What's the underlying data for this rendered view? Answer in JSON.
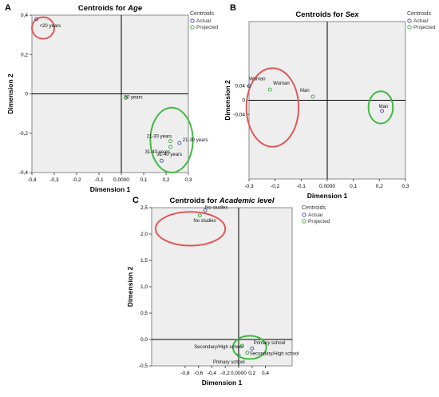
{
  "chart_data": [
    {
      "type": "scatter",
      "panel_letter": "A",
      "title_prefix": "Centroids for ",
      "title_var": "Age",
      "xlabel": "Dimension 1",
      "ylabel": "Dimension 2",
      "xlim": [
        -0.4,
        0.3
      ],
      "ylim": [
        -0.4,
        0.4
      ],
      "xticks": [
        -0.4,
        -0.3,
        -0.2,
        -0.1,
        0.0,
        0.1,
        0.2,
        0.3
      ],
      "xtick_labels": [
        "-0,4",
        "-0,3",
        "-0,2",
        "-0,1",
        "0,0000",
        "0,1",
        "0,2",
        "0,3"
      ],
      "yticks": [
        -0.4,
        -0.2,
        0.0,
        0.2,
        0.4
      ],
      "ytick_labels": [
        "-0,4",
        "-0,2",
        "0",
        "0,2",
        "0,4"
      ],
      "legend_title": "Centroids",
      "legend_placement": "right",
      "series": [
        {
          "name": "Actual",
          "color": "#4a4aa8",
          "points": [
            {
              "label": "<20 years",
              "x": -0.38,
              "y": 0.38
            },
            {
              "label": "21-30 years",
              "x": 0.26,
              "y": -0.25
            },
            {
              "label": "31-40 years",
              "x": 0.18,
              "y": -0.34
            }
          ]
        },
        {
          "name": "Projected",
          "color": "#3aa83a",
          "points": [
            {
              "label": "50 years",
              "x": 0.02,
              "y": -0.02
            },
            {
              "label": "21-30 years",
              "x": 0.22,
              "y": -0.24
            },
            {
              "label": "31-40 years",
              "x": 0.22,
              "y": -0.27
            }
          ]
        }
      ],
      "ellipses": [
        {
          "color": "#e05858",
          "cx": -0.35,
          "cy": 0.335,
          "rx": 0.05,
          "ry": 0.055
        },
        {
          "color": "#3dbb3d",
          "cx": 0.225,
          "cy": -0.235,
          "rx": 0.095,
          "ry": 0.165
        }
      ]
    },
    {
      "type": "scatter",
      "panel_letter": "B",
      "title_prefix": "Centroids for ",
      "title_var": "Sex",
      "xlabel": "Dimension 1",
      "ylabel": "Dimension 2",
      "xlim": [
        -0.3,
        0.3
      ],
      "ylim": [
        -0.22,
        0.22
      ],
      "xticks": [
        -0.3,
        -0.2,
        -0.1,
        0.0,
        0.1,
        0.2,
        0.3
      ],
      "xtick_labels": [
        "-0,3",
        "-0,2",
        "-0,1",
        "0,0000",
        "0,1",
        "0,2",
        "0,3"
      ],
      "yticks": [
        0.04,
        0.0,
        -0.04
      ],
      "ytick_labels": [
        "0,04",
        "0",
        "-0,04"
      ],
      "legend_title": "Centroids",
      "legend_placement": "right",
      "series": [
        {
          "name": "Actual",
          "color": "#4a4aa8",
          "points": [
            {
              "label": "Woman",
              "x": -0.3,
              "y": 0.04
            },
            {
              "label": "Man",
              "x": 0.21,
              "y": -0.03
            }
          ]
        },
        {
          "name": "Projected",
          "color": "#3aa83a",
          "points": [
            {
              "label": "Woman",
              "x": -0.22,
              "y": 0.03
            },
            {
              "label": "Man",
              "x": -0.055,
              "y": 0.01
            }
          ]
        }
      ],
      "ellipses": [
        {
          "color": "#e05858",
          "cx": -0.21,
          "cy": -0.02,
          "rx": 0.1,
          "ry": 0.11
        },
        {
          "color": "#3dbb3d",
          "cx": 0.205,
          "cy": -0.02,
          "rx": 0.047,
          "ry": 0.045
        }
      ]
    },
    {
      "type": "scatter",
      "panel_letter": "C",
      "title_prefix": "Centroids for ",
      "title_var": "Academic level",
      "xlabel": "Dimension 1",
      "ylabel": "Dimension 2",
      "xlim": [
        -1.3,
        0.8
      ],
      "ylim": [
        -0.5,
        2.5
      ],
      "xticks": [
        -0.8,
        -0.6,
        -0.4,
        -0.2,
        0.0,
        0.2,
        0.4
      ],
      "xtick_labels": [
        "-0,8",
        "-0,6",
        "-0,4",
        "-0,2",
        "0,0000",
        "0,2",
        "0,4"
      ],
      "yticks": [
        -0.5,
        0.0,
        0.5,
        1.0,
        1.5,
        2.0,
        2.5
      ],
      "ytick_labels": [
        "-0,5",
        "0,0",
        "0,5",
        "1,0",
        "1,5",
        "2,0",
        "2,5"
      ],
      "legend_title": "Centroids",
      "legend_placement": "right",
      "series": [
        {
          "name": "Actual",
          "color": "#4a4aa8",
          "points": [
            {
              "label": "No studies",
              "x": -0.5,
              "y": 2.45
            },
            {
              "label": "Primary school",
              "x": 0.2,
              "y": -0.17
            }
          ]
        },
        {
          "name": "Projected",
          "color": "#3aa83a",
          "points": [
            {
              "label": "No studies",
              "x": -0.58,
              "y": 2.35
            },
            {
              "label": "Secondary/High school",
              "x": 0.05,
              "y": -0.12
            },
            {
              "label": "Secondary/High school",
              "x": 0.13,
              "y": -0.25
            },
            {
              "label": "Primary school",
              "x": 0.0,
              "y": -0.3
            }
          ]
        }
      ],
      "ellipses": [
        {
          "color": "#e05858",
          "cx": -0.72,
          "cy": 2.1,
          "rx": 0.52,
          "ry": 0.32
        },
        {
          "color": "#3dbb3d",
          "cx": 0.165,
          "cy": -0.15,
          "rx": 0.25,
          "ry": 0.22
        }
      ]
    }
  ]
}
